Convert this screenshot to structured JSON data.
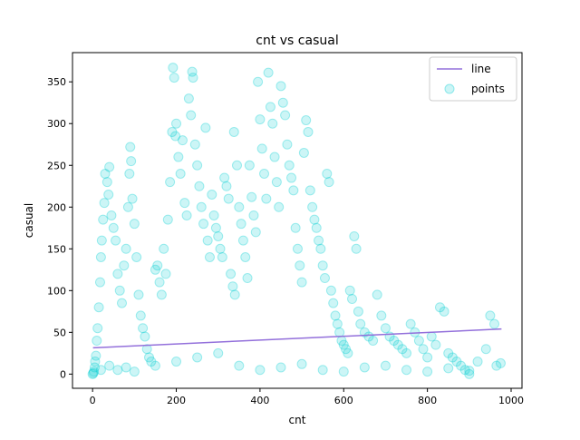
{
  "chart_data": {
    "type": "scatter",
    "title": "cnt vs casual",
    "xlabel": "cnt",
    "ylabel": "casual",
    "xlim": [
      -48,
      1026
    ],
    "ylim": [
      -17,
      385
    ],
    "xticks": [
      0,
      200,
      400,
      600,
      800,
      1000
    ],
    "yticks": [
      0,
      50,
      100,
      150,
      200,
      250,
      300,
      350
    ],
    "grid": false,
    "legend_position": "top-right",
    "series": [
      {
        "name": "line",
        "kind": "line",
        "color": "#9370db",
        "points": [
          [
            1,
            31.5
          ],
          [
            977,
            54
          ]
        ]
      },
      {
        "name": "points",
        "kind": "scatter",
        "color": "#00ced1",
        "opacity": 0.2,
        "points": [
          [
            0,
            0
          ],
          [
            2,
            1
          ],
          [
            3,
            3
          ],
          [
            5,
            8
          ],
          [
            6,
            15
          ],
          [
            8,
            22
          ],
          [
            10,
            40
          ],
          [
            12,
            55
          ],
          [
            15,
            80
          ],
          [
            18,
            110
          ],
          [
            20,
            140
          ],
          [
            22,
            160
          ],
          [
            25,
            185
          ],
          [
            28,
            205
          ],
          [
            30,
            240
          ],
          [
            35,
            230
          ],
          [
            38,
            215
          ],
          [
            40,
            248
          ],
          [
            45,
            190
          ],
          [
            50,
            175
          ],
          [
            55,
            160
          ],
          [
            60,
            120
          ],
          [
            65,
            100
          ],
          [
            70,
            85
          ],
          [
            75,
            130
          ],
          [
            80,
            150
          ],
          [
            85,
            200
          ],
          [
            88,
            240
          ],
          [
            90,
            272
          ],
          [
            92,
            255
          ],
          [
            95,
            210
          ],
          [
            100,
            180
          ],
          [
            105,
            140
          ],
          [
            110,
            95
          ],
          [
            115,
            70
          ],
          [
            120,
            55
          ],
          [
            125,
            45
          ],
          [
            130,
            30
          ],
          [
            135,
            20
          ],
          [
            140,
            15
          ],
          [
            150,
            125
          ],
          [
            155,
            130
          ],
          [
            160,
            110
          ],
          [
            165,
            95
          ],
          [
            170,
            150
          ],
          [
            175,
            120
          ],
          [
            180,
            185
          ],
          [
            185,
            230
          ],
          [
            190,
            290
          ],
          [
            192,
            367
          ],
          [
            195,
            355
          ],
          [
            198,
            285
          ],
          [
            200,
            300
          ],
          [
            205,
            260
          ],
          [
            210,
            240
          ],
          [
            215,
            280
          ],
          [
            220,
            205
          ],
          [
            225,
            190
          ],
          [
            230,
            330
          ],
          [
            235,
            310
          ],
          [
            238,
            362
          ],
          [
            240,
            355
          ],
          [
            245,
            275
          ],
          [
            250,
            250
          ],
          [
            255,
            225
          ],
          [
            260,
            200
          ],
          [
            265,
            180
          ],
          [
            270,
            295
          ],
          [
            275,
            160
          ],
          [
            280,
            140
          ],
          [
            285,
            215
          ],
          [
            290,
            190
          ],
          [
            295,
            175
          ],
          [
            300,
            165
          ],
          [
            305,
            150
          ],
          [
            310,
            140
          ],
          [
            315,
            235
          ],
          [
            320,
            225
          ],
          [
            325,
            210
          ],
          [
            330,
            120
          ],
          [
            335,
            105
          ],
          [
            338,
            290
          ],
          [
            340,
            95
          ],
          [
            345,
            250
          ],
          [
            350,
            200
          ],
          [
            355,
            180
          ],
          [
            360,
            160
          ],
          [
            365,
            140
          ],
          [
            370,
            115
          ],
          [
            375,
            250
          ],
          [
            380,
            212
          ],
          [
            385,
            190
          ],
          [
            390,
            170
          ],
          [
            395,
            350
          ],
          [
            400,
            305
          ],
          [
            405,
            270
          ],
          [
            410,
            240
          ],
          [
            415,
            210
          ],
          [
            420,
            361
          ],
          [
            425,
            320
          ],
          [
            430,
            300
          ],
          [
            435,
            260
          ],
          [
            440,
            230
          ],
          [
            445,
            200
          ],
          [
            450,
            345
          ],
          [
            455,
            325
          ],
          [
            460,
            310
          ],
          [
            465,
            275
          ],
          [
            470,
            250
          ],
          [
            475,
            235
          ],
          [
            480,
            220
          ],
          [
            485,
            175
          ],
          [
            490,
            150
          ],
          [
            495,
            130
          ],
          [
            500,
            110
          ],
          [
            505,
            265
          ],
          [
            510,
            304
          ],
          [
            515,
            290
          ],
          [
            520,
            220
          ],
          [
            525,
            200
          ],
          [
            530,
            185
          ],
          [
            535,
            175
          ],
          [
            540,
            160
          ],
          [
            545,
            150
          ],
          [
            550,
            130
          ],
          [
            555,
            115
          ],
          [
            560,
            240
          ],
          [
            565,
            230
          ],
          [
            570,
            100
          ],
          [
            575,
            85
          ],
          [
            580,
            70
          ],
          [
            585,
            60
          ],
          [
            590,
            50
          ],
          [
            595,
            40
          ],
          [
            600,
            35
          ],
          [
            605,
            30
          ],
          [
            610,
            25
          ],
          [
            615,
            100
          ],
          [
            620,
            90
          ],
          [
            625,
            165
          ],
          [
            630,
            150
          ],
          [
            635,
            75
          ],
          [
            640,
            60
          ],
          [
            650,
            50
          ],
          [
            660,
            45
          ],
          [
            670,
            40
          ],
          [
            680,
            95
          ],
          [
            690,
            70
          ],
          [
            700,
            55
          ],
          [
            710,
            45
          ],
          [
            720,
            40
          ],
          [
            730,
            35
          ],
          [
            740,
            30
          ],
          [
            750,
            25
          ],
          [
            760,
            60
          ],
          [
            770,
            50
          ],
          [
            780,
            40
          ],
          [
            790,
            30
          ],
          [
            800,
            20
          ],
          [
            810,
            45
          ],
          [
            820,
            35
          ],
          [
            830,
            80
          ],
          [
            840,
            75
          ],
          [
            850,
            25
          ],
          [
            860,
            20
          ],
          [
            870,
            15
          ],
          [
            880,
            10
          ],
          [
            890,
            5
          ],
          [
            900,
            0
          ],
          [
            920,
            15
          ],
          [
            940,
            30
          ],
          [
            950,
            70
          ],
          [
            960,
            60
          ],
          [
            965,
            10
          ],
          [
            975,
            13
          ],
          [
            20,
            5
          ],
          [
            40,
            10
          ],
          [
            60,
            5
          ],
          [
            80,
            8
          ],
          [
            100,
            3
          ],
          [
            150,
            10
          ],
          [
            200,
            15
          ],
          [
            250,
            20
          ],
          [
            300,
            25
          ],
          [
            350,
            10
          ],
          [
            400,
            5
          ],
          [
            450,
            8
          ],
          [
            500,
            12
          ],
          [
            550,
            5
          ],
          [
            600,
            3
          ],
          [
            650,
            8
          ],
          [
            700,
            10
          ],
          [
            750,
            5
          ],
          [
            800,
            3
          ],
          [
            850,
            7
          ],
          [
            900,
            4
          ]
        ]
      }
    ]
  }
}
